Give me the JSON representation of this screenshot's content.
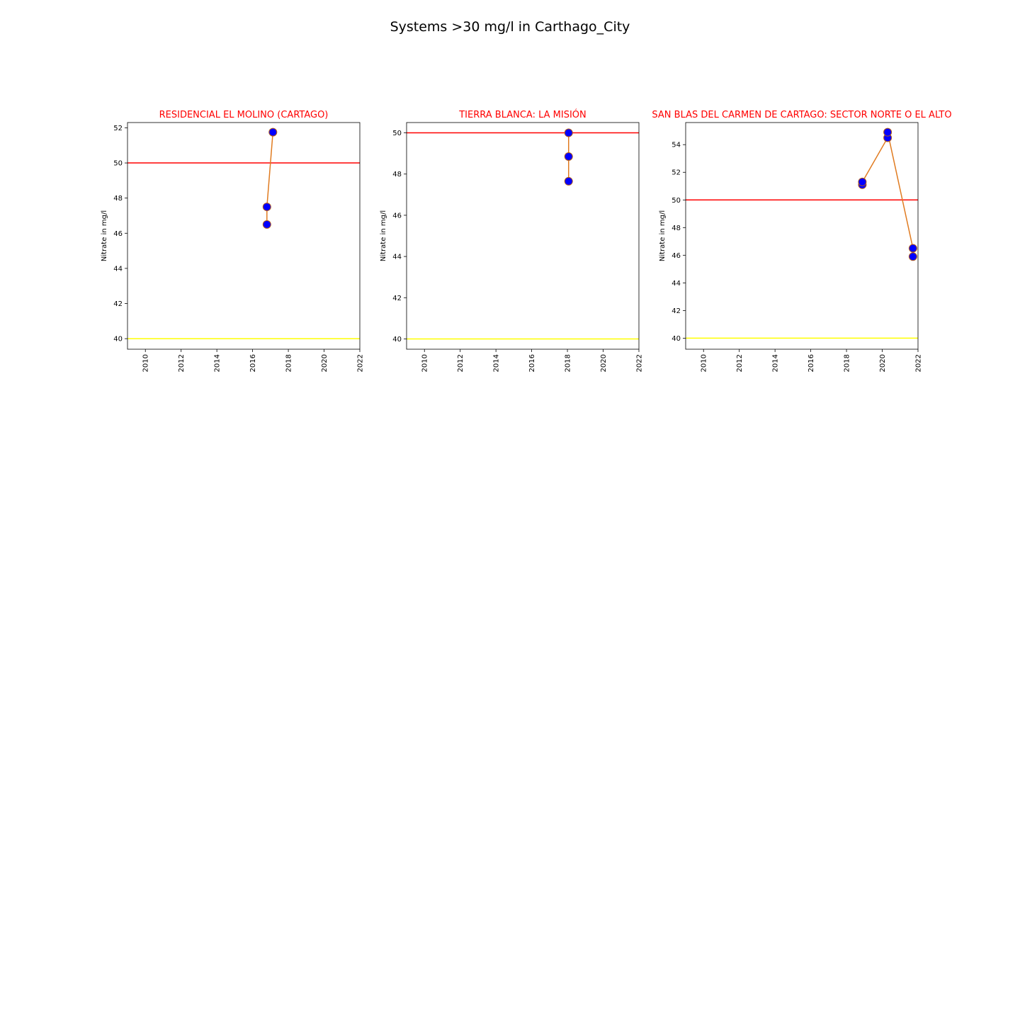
{
  "figure": {
    "title": "Systems >30 mg/l in Carthago_City"
  },
  "colors": {
    "line": "#e07b20",
    "marker_fill": "#0000ff",
    "marker_edge": "#b05a1a",
    "threshold_50": "#ff0000",
    "threshold_40": "#ffff00",
    "title": "#ff0000"
  },
  "chart_data": [
    {
      "type": "line",
      "title": "RESIDENCIAL EL MOLINO (CARTAGO)",
      "ylabel": "Nitrate in mg/l",
      "xlabel": "",
      "xlim": [
        2009,
        2022
      ],
      "ylim": [
        39.4,
        52.3
      ],
      "xticks": [
        "2010",
        "2012",
        "2014",
        "2016",
        "2018",
        "2020",
        "2022"
      ],
      "yticks": [
        "40",
        "42",
        "44",
        "46",
        "48",
        "50",
        "52"
      ],
      "x": [
        "2016-10-20",
        "2016-10-20",
        "2017-02-20"
      ],
      "y": [
        46.5,
        47.5,
        51.75
      ],
      "hlines": [
        50,
        40
      ],
      "grid": false
    },
    {
      "type": "line",
      "title": "TIERRA BLANCA: LA MISIÓN",
      "ylabel": "Nitrate in mg/l",
      "xlabel": "",
      "xlim": [
        2009,
        2022
      ],
      "ylim": [
        39.5,
        50.5
      ],
      "xticks": [
        "2010",
        "2012",
        "2014",
        "2016",
        "2018",
        "2020",
        "2022"
      ],
      "yticks": [
        "40",
        "42",
        "44",
        "46",
        "48",
        "50"
      ],
      "x": [
        "2018-01-25",
        "2018-01-25",
        "2018-01-25"
      ],
      "y": [
        47.65,
        48.85,
        50.0
      ],
      "hlines": [
        50,
        40
      ],
      "grid": false
    },
    {
      "type": "line",
      "title": "SAN BLAS DEL CARMEN DE CARTAGO: SECTOR NORTE O EL ALTO",
      "ylabel": "Nitrate in mg/l",
      "xlabel": "",
      "xlim": [
        2009,
        2022
      ],
      "ylim": [
        39.2,
        55.6
      ],
      "xticks": [
        "2010",
        "2012",
        "2014",
        "2016",
        "2018",
        "2020",
        "2022"
      ],
      "yticks": [
        "40",
        "42",
        "44",
        "46",
        "48",
        "50",
        "52",
        "54"
      ],
      "x": [
        "2018-11-20",
        "2018-11-20",
        "2020-04-20",
        "2020-04-20",
        "2021-09-20",
        "2021-09-20"
      ],
      "y": [
        51.1,
        51.3,
        54.5,
        54.9,
        46.5,
        45.9
      ],
      "hlines": [
        50,
        40
      ],
      "grid": false
    }
  ]
}
